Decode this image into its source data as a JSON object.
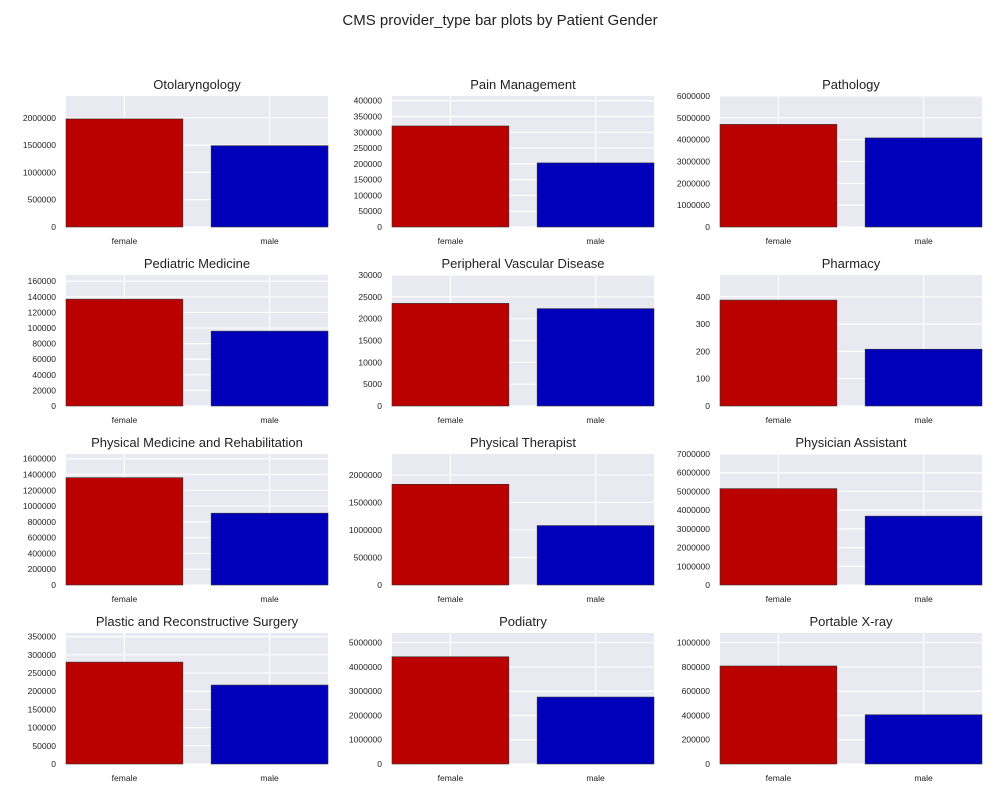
{
  "suptitle": "CMS provider_type bar plots by Patient Gender",
  "colors": {
    "female": "#bb0000",
    "male": "#0000bb",
    "panel_background": "#e9e9f1",
    "grid": "#ffffff"
  },
  "chart_data": [
    {
      "type": "bar",
      "title": "Otolaryngology",
      "categories": [
        "female",
        "male"
      ],
      "values": [
        1980000,
        1490000
      ],
      "ylim": [
        0,
        2400000
      ],
      "yticks": [
        0,
        500000,
        1000000,
        1500000,
        2000000
      ],
      "grid": true
    },
    {
      "type": "bar",
      "title": "Pain Management",
      "categories": [
        "female",
        "male"
      ],
      "values": [
        320000,
        203000
      ],
      "ylim": [
        0,
        415000
      ],
      "yticks": [
        0,
        50000,
        100000,
        150000,
        200000,
        250000,
        300000,
        350000,
        400000
      ],
      "grid": true
    },
    {
      "type": "bar",
      "title": "Pathology",
      "categories": [
        "female",
        "male"
      ],
      "values": [
        4700000,
        4080000
      ],
      "ylim": [
        0,
        6000000
      ],
      "yticks": [
        0,
        1000000,
        2000000,
        3000000,
        4000000,
        5000000,
        6000000
      ],
      "grid": true
    },
    {
      "type": "bar",
      "title": "Pediatric Medicine",
      "categories": [
        "female",
        "male"
      ],
      "values": [
        137000,
        96000
      ],
      "ylim": [
        0,
        168000
      ],
      "yticks": [
        0,
        20000,
        40000,
        60000,
        80000,
        100000,
        120000,
        140000,
        160000
      ],
      "grid": true
    },
    {
      "type": "bar",
      "title": "Peripheral Vascular Disease",
      "categories": [
        "female",
        "male"
      ],
      "values": [
        23500,
        22300
      ],
      "ylim": [
        0,
        30000
      ],
      "yticks": [
        0,
        5000,
        10000,
        15000,
        20000,
        25000,
        30000
      ],
      "grid": true
    },
    {
      "type": "bar",
      "title": "Pharmacy",
      "categories": [
        "female",
        "male"
      ],
      "values": [
        388,
        208
      ],
      "ylim": [
        0,
        480
      ],
      "yticks": [
        0,
        100,
        200,
        300,
        400
      ],
      "grid": true
    },
    {
      "type": "bar",
      "title": "Physical Medicine and Rehabilitation",
      "categories": [
        "female",
        "male"
      ],
      "values": [
        1360000,
        910000
      ],
      "ylim": [
        0,
        1660000
      ],
      "yticks": [
        0,
        200000,
        400000,
        600000,
        800000,
        1000000,
        1200000,
        1400000,
        1600000
      ],
      "grid": true
    },
    {
      "type": "bar",
      "title": "Physical Therapist",
      "categories": [
        "female",
        "male"
      ],
      "values": [
        1830000,
        1080000
      ],
      "ylim": [
        0,
        2380000
      ],
      "yticks": [
        0,
        500000,
        1000000,
        1500000,
        2000000
      ],
      "grid": true
    },
    {
      "type": "bar",
      "title": "Physician Assistant",
      "categories": [
        "female",
        "male"
      ],
      "values": [
        5150000,
        3680000
      ],
      "ylim": [
        0,
        7000000
      ],
      "yticks": [
        0,
        1000000,
        2000000,
        3000000,
        4000000,
        5000000,
        6000000,
        7000000
      ],
      "grid": true
    },
    {
      "type": "bar",
      "title": "Plastic and Reconstructive Surgery",
      "categories": [
        "female",
        "male"
      ],
      "values": [
        280000,
        217000
      ],
      "ylim": [
        0,
        360000
      ],
      "yticks": [
        0,
        50000,
        100000,
        150000,
        200000,
        250000,
        300000,
        350000
      ],
      "grid": true
    },
    {
      "type": "bar",
      "title": "Podiatry",
      "categories": [
        "female",
        "male"
      ],
      "values": [
        4420000,
        2760000
      ],
      "ylim": [
        0,
        5400000
      ],
      "yticks": [
        0,
        1000000,
        2000000,
        3000000,
        4000000,
        5000000
      ],
      "grid": true
    },
    {
      "type": "bar",
      "title": "Portable X-ray",
      "categories": [
        "female",
        "male"
      ],
      "values": [
        808000,
        406000
      ],
      "ylim": [
        0,
        1080000
      ],
      "yticks": [
        0,
        200000,
        400000,
        600000,
        800000,
        1000000
      ],
      "grid": true
    }
  ]
}
